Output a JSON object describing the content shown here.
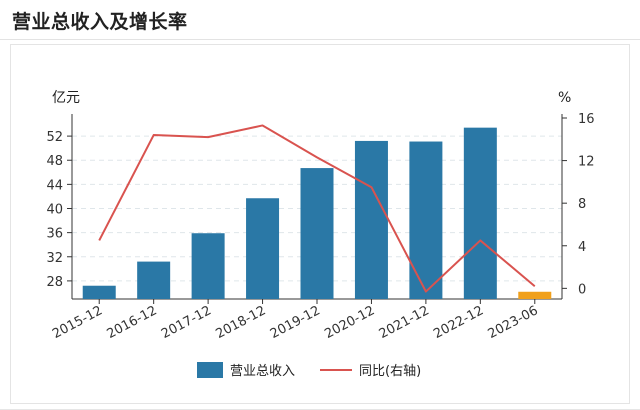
{
  "header": {
    "title": "营业总收入及增长率"
  },
  "colors": {
    "bar": "#2a78a6",
    "bar_highlight": "#f0a01c",
    "line": "#d9534f",
    "grid": "#dfe6ea",
    "axis": "#333333"
  },
  "chart_data": {
    "type": "bar",
    "categories": [
      "2015-12",
      "2016-12",
      "2017-12",
      "2018-12",
      "2019-12",
      "2020-12",
      "2021-12",
      "2022-12",
      "2023-06"
    ],
    "left_axis": {
      "unit": "亿元",
      "ylim": [
        25,
        55
      ],
      "ticks": [
        "28",
        "32",
        "36",
        "40",
        "44",
        "48",
        "52"
      ]
    },
    "right_axis": {
      "unit": "%",
      "ylim": [
        -1,
        16
      ],
      "ticks": [
        "0",
        "4",
        "8",
        "12",
        "16"
      ]
    },
    "series": [
      {
        "name": "营业总收入",
        "type": "bar",
        "axis": "left",
        "values": [
          27.2,
          31.2,
          35.9,
          41.7,
          46.7,
          51.2,
          51.1,
          53.4,
          26.2
        ]
      },
      {
        "name": "同比(右轴)",
        "type": "line",
        "axis": "right",
        "values": [
          4.5,
          14.4,
          14.2,
          15.3,
          12.3,
          9.5,
          -0.3,
          4.5,
          0.2
        ]
      }
    ],
    "legend": [
      {
        "label": "营业总收入",
        "kind": "bar"
      },
      {
        "label": "同比(右轴)",
        "kind": "line"
      }
    ],
    "legend_position": "bottom",
    "grid": true
  }
}
